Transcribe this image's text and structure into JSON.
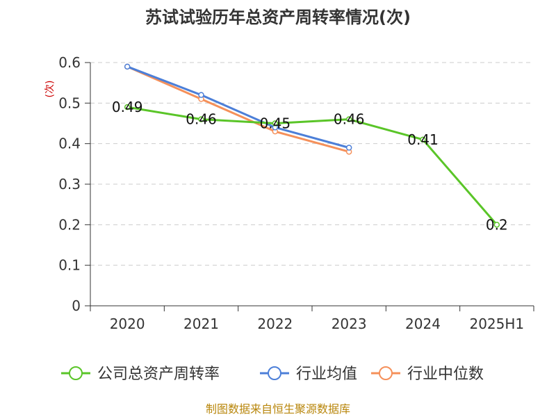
{
  "chart_data": {
    "type": "line",
    "title": "苏试试验历年总资产周转率情况(次)",
    "ylabel": "(次)",
    "categories": [
      "2020",
      "2021",
      "2022",
      "2023",
      "2024",
      "2025H1"
    ],
    "ylim": [
      0,
      0.6
    ],
    "yticks": [
      "0",
      "0.1",
      "0.2",
      "0.3",
      "0.4",
      "0.5",
      "0.6"
    ],
    "grid": true,
    "legend_position": "bottom",
    "series": [
      {
        "name": "公司总资产周转率",
        "color": "#5ac528",
        "values": [
          0.49,
          0.46,
          0.45,
          0.46,
          0.41,
          0.2
        ],
        "labels": [
          "0.49",
          "0.46",
          "0.45",
          "0.46",
          "0.41",
          "0.2"
        ]
      },
      {
        "name": "行业均值",
        "color": "#4c7fd8",
        "values": [
          0.59,
          0.52,
          0.44,
          0.39,
          null,
          null
        ]
      },
      {
        "name": "行业中位数",
        "color": "#f5905a",
        "values": [
          0.59,
          0.51,
          0.43,
          0.38,
          null,
          null
        ]
      }
    ],
    "source": "制图数据来自恒生聚源数据库"
  }
}
